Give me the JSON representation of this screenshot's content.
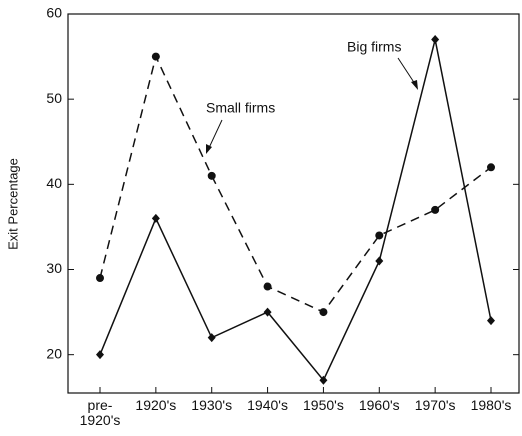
{
  "chart_data": {
    "type": "line",
    "y_label": "Exit Percentage",
    "categories": [
      "pre-1920's",
      "1920's",
      "1930's",
      "1940's",
      "1950's",
      "1960's",
      "1970's",
      "1980's"
    ],
    "series": [
      {
        "name": "Big firms",
        "color": "#111111",
        "dash": false,
        "marker": "diamond",
        "values": [
          20,
          36,
          22,
          25,
          17,
          31,
          57,
          24
        ]
      },
      {
        "name": "Small firms",
        "color": "#111111",
        "dash": true,
        "marker": "circle",
        "values": [
          29,
          55,
          41,
          28,
          25,
          34,
          37,
          42
        ]
      }
    ],
    "ylim": [
      15.5,
      60
    ],
    "yticks": [
      20,
      30,
      40,
      50,
      60
    ],
    "grid": false
  }
}
